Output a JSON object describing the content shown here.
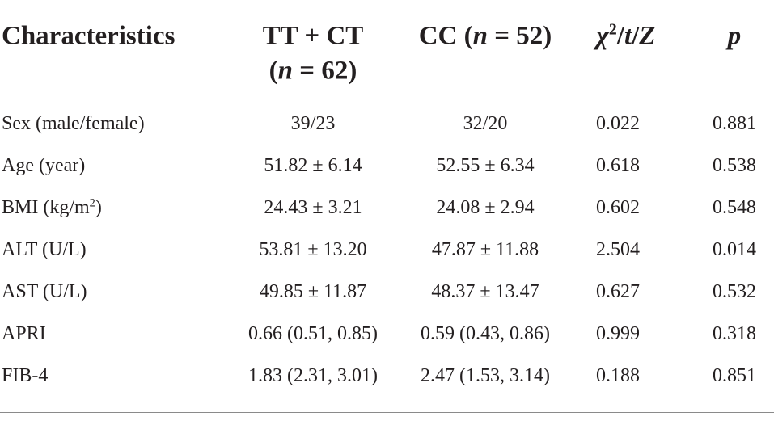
{
  "header": {
    "columns": [
      [
        "Characteristics"
      ],
      [
        "TT + CT",
        "(",
        "n",
        " = 62)"
      ],
      [
        "CC (",
        "n",
        " = 52)"
      ],
      [
        "χ",
        "2",
        "/",
        "t",
        "/",
        "Z"
      ],
      [
        "p"
      ]
    ]
  },
  "table": {
    "rows": [
      [
        "Sex (male/female)",
        "39/23",
        "32/20",
        "0.022",
        "0.881"
      ],
      [
        "Age (year)",
        "51.82 ± 6.14",
        "52.55 ± 6.34",
        "0.618",
        "0.538"
      ],
      [
        [
          "BMI (kg/m",
          "2",
          ")"
        ],
        "24.43 ± 3.21",
        "24.08 ± 2.94",
        "0.602",
        "0.548"
      ],
      [
        "ALT (U/L)",
        "53.81 ± 13.20",
        "47.87 ± 11.88",
        "2.504",
        "0.014"
      ],
      [
        "AST (U/L)",
        "49.85 ± 11.87",
        "48.37 ± 13.47",
        "0.627",
        "0.532"
      ],
      [
        "APRI",
        "0.66 (0.51, 0.85)",
        "0.59 (0.43, 0.86)",
        "0.999",
        "0.318"
      ],
      [
        "FIB-4",
        "1.83 (2.31, 3.01)",
        "2.47 (1.53, 3.14)",
        "0.188",
        "0.851"
      ]
    ]
  }
}
